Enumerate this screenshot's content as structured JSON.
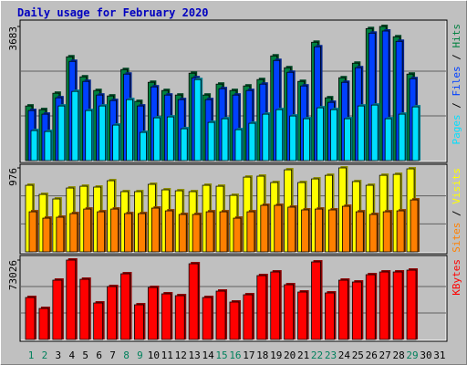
{
  "chart_data": [
    {
      "type": "bar",
      "title": "Daily usage for February 2020",
      "legend_separator": " / ",
      "ylim": [
        0,
        3683
      ],
      "yticks": [
        3683
      ],
      "series": [
        {
          "name": "Hits",
          "color": "#008040",
          "values": [
            1500,
            1400,
            1850,
            2850,
            2300,
            1925,
            1775,
            2500,
            1625,
            2150,
            1925,
            1800,
            2400,
            1800,
            2100,
            1925,
            2050,
            2225,
            2875,
            2550,
            2175,
            3250,
            1725,
            2275,
            2675,
            3625,
            3683,
            3400,
            2375,
            null,
            null
          ]
        },
        {
          "name": "Files",
          "color": "#0040ff",
          "values": [
            1375,
            1275,
            1725,
            2725,
            2175,
            1800,
            1650,
            2375,
            1500,
            2025,
            1800,
            1675,
            2275,
            1675,
            1975,
            1800,
            1925,
            2100,
            2750,
            2425,
            2050,
            3125,
            1600,
            2150,
            2550,
            3500,
            3558,
            3275,
            2250,
            null,
            null
          ]
        },
        {
          "name": "Pages",
          "color": "#00e0ff",
          "values": [
            825,
            800,
            1500,
            1900,
            1375,
            1500,
            975,
            1675,
            775,
            1175,
            1200,
            875,
            2225,
            1050,
            1150,
            850,
            1025,
            1275,
            1400,
            1225,
            1150,
            1450,
            1400,
            1150,
            1500,
            1525,
            1150,
            1275,
            1475,
            null,
            null
          ]
        }
      ]
    },
    {
      "type": "bar",
      "legend_separator": " / ",
      "ylim": [
        0,
        976
      ],
      "yticks": [
        976
      ],
      "series": [
        {
          "name": "Visits",
          "color": "#ffff00",
          "values": [
            774,
            668,
            615,
            742,
            763,
            753,
            827,
            700,
            700,
            785,
            721,
            710,
            700,
            774,
            763,
            657,
            869,
            880,
            806,
            954,
            806,
            848,
            890,
            976,
            817,
            774,
            890,
            901,
            965,
            null,
            null
          ]
        },
        {
          "name": "Sites",
          "color": "#ff8000",
          "values": [
            466,
            392,
            403,
            445,
            498,
            466,
            498,
            445,
            445,
            509,
            477,
            435,
            435,
            466,
            466,
            392,
            466,
            541,
            541,
            520,
            488,
            498,
            488,
            530,
            466,
            435,
            466,
            477,
            604,
            null,
            null
          ]
        }
      ]
    },
    {
      "type": "bar",
      "ylim": [
        0,
        73026
      ],
      "yticks": [
        73026
      ],
      "categories": [
        "1",
        "2",
        "3",
        "4",
        "5",
        "6",
        "7",
        "8",
        "9",
        "10",
        "11",
        "12",
        "13",
        "14",
        "15",
        "16",
        "17",
        "18",
        "19",
        "20",
        "21",
        "22",
        "23",
        "24",
        "25",
        "26",
        "27",
        "28",
        "29",
        "30",
        "31"
      ],
      "weekends": [
        0,
        1,
        7,
        8,
        14,
        15,
        21,
        22,
        28
      ],
      "weekend_color": "#00805c",
      "series": [
        {
          "name": "KBytes",
          "color": "#ff0000",
          "values": [
            38594,
            28526,
            54535,
            73026,
            55374,
            33560,
            48662,
            60408,
            31882,
            47823,
            41950,
            40272,
            69637,
            38594,
            44467,
            34399,
            41111,
            58730,
            62086,
            50340,
            43628,
            71315,
            42789,
            54535,
            52857,
            59569,
            62086,
            62086,
            63764,
            null,
            null
          ]
        }
      ]
    }
  ]
}
